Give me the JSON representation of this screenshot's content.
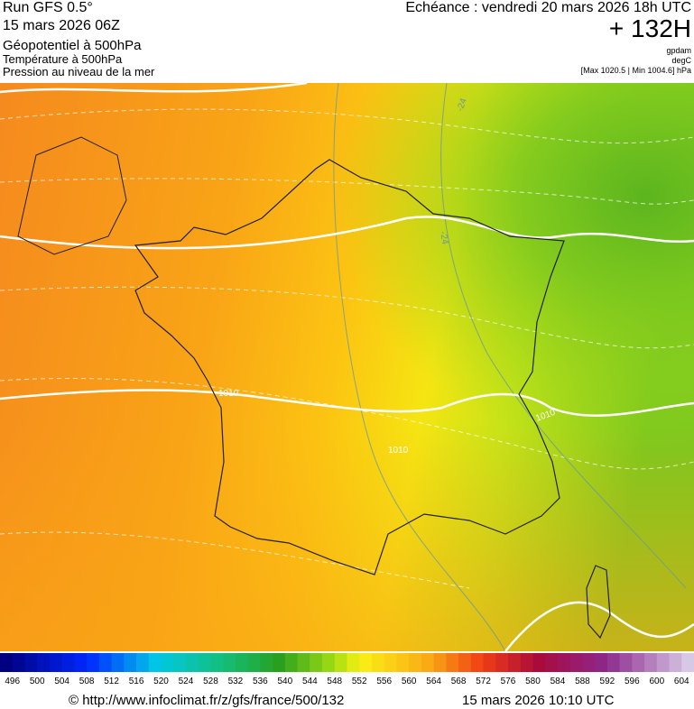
{
  "header": {
    "run": "Run GFS 0.5°",
    "run_date": "15 mars 2026 06Z",
    "field_1": "Géopotentiel à 500hPa",
    "field_2": "Température à 500hPa",
    "field_3": "Pression au niveau de la mer",
    "valid": "Echéance : vendredi 20 mars 2026 18h UTC",
    "lead": "+ 132H",
    "unit_1": "gpdam",
    "unit_2": "degC",
    "pressure_range": "[Max 1020.5 | Min 1004.6] hPa"
  },
  "map": {
    "contour_labels": [
      "-24",
      "-24",
      "1010",
      "1010",
      "1010"
    ]
  },
  "legend": {
    "levels": [
      496,
      500,
      504,
      508,
      512,
      516,
      520,
      524,
      528,
      532,
      536,
      540,
      544,
      548,
      552,
      556,
      560,
      564,
      568,
      572,
      576,
      580,
      584,
      588,
      592,
      596,
      600,
      604
    ]
  },
  "footer": {
    "url": "© http://www.infoclimat.fr/z/gfs/france/500/132",
    "generated": "15 mars 2026 10:10 UTC"
  }
}
